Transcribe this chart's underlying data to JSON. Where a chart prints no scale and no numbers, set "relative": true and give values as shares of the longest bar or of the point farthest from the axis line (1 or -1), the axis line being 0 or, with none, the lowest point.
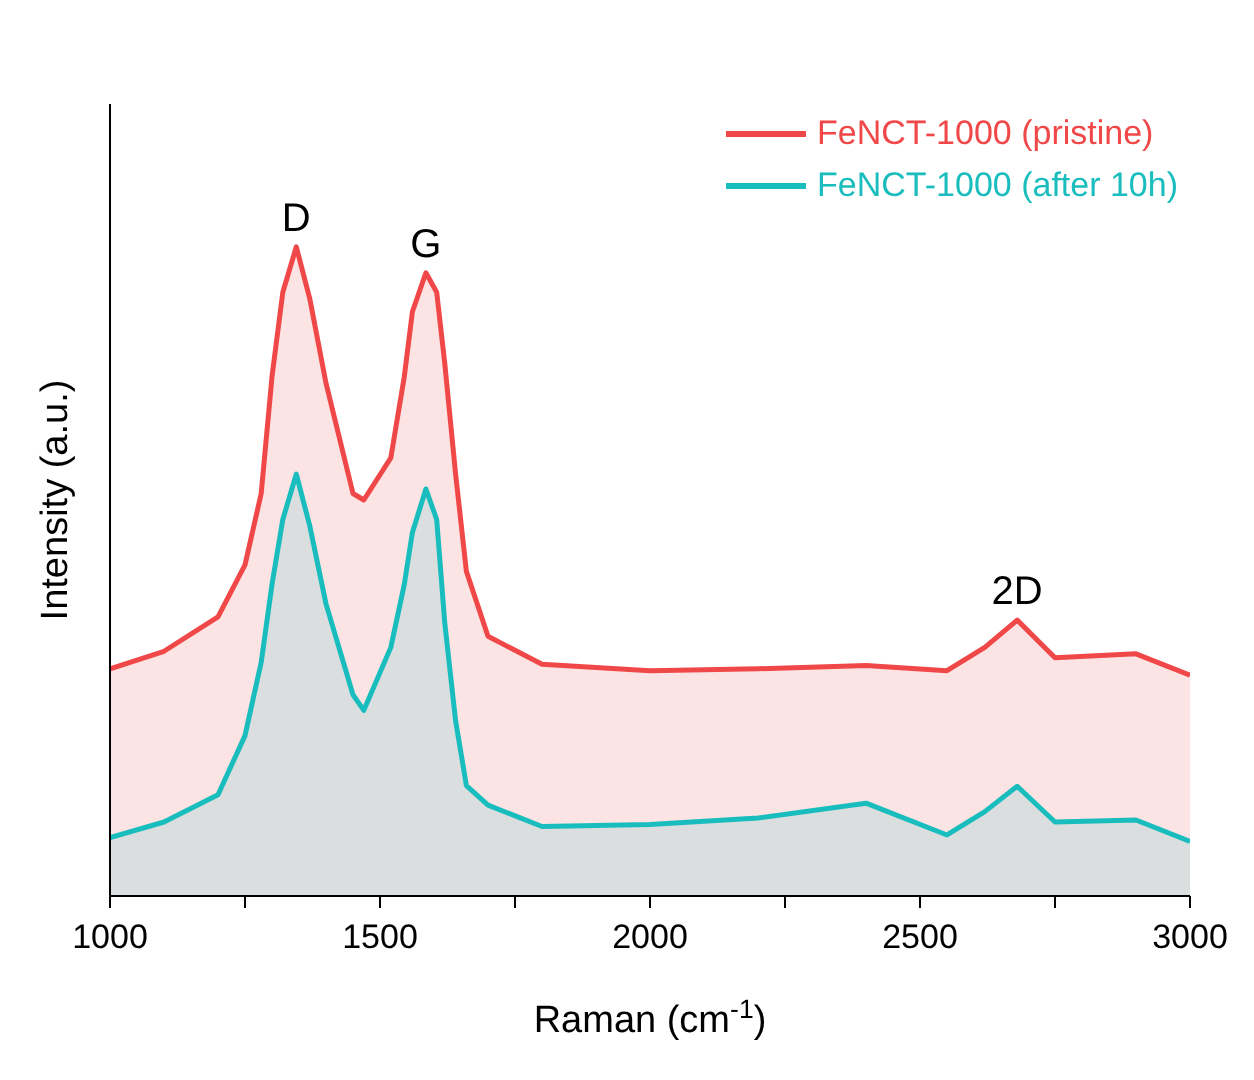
{
  "chart_data": {
    "type": "area",
    "relative": true,
    "xlabel": "Raman (cm$^{-1}$)",
    "ylabel": "Intensity (a.u.)",
    "xlim": [
      1000,
      3000
    ],
    "xticks": [
      1000,
      {
        "value": 1250,
        "label": null
      },
      1500,
      {
        "value": 1750,
        "label": null
      },
      2000,
      {
        "value": 2250,
        "label": null
      },
      2500,
      {
        "value": 2750,
        "label": null
      },
      3000
    ],
    "x": [
      1000,
      1100,
      1200,
      1250,
      1280,
      1300,
      1320,
      1345,
      1370,
      1400,
      1450,
      1470,
      1520,
      1545,
      1560,
      1585,
      1605,
      1620,
      1640,
      1660,
      1700,
      1800,
      2000,
      2200,
      2400,
      2550,
      2620,
      2680,
      2750,
      2900,
      3000
    ],
    "series": [
      {
        "name": "FeNCT-1000 (pristine)",
        "color": "#f04848",
        "values": [
          0.35,
          0.377,
          0.43,
          0.51,
          0.62,
          0.8,
          0.93,
          1.0,
          0.92,
          0.79,
          0.62,
          0.61,
          0.675,
          0.8,
          0.9,
          0.96,
          0.93,
          0.82,
          0.65,
          0.5,
          0.4,
          0.357,
          0.347,
          0.35,
          0.355,
          0.347,
          0.383,
          0.425,
          0.367,
          0.373,
          0.34
        ]
      },
      {
        "name": "FeNCT-1000 (after 10h)",
        "color": "#1abdbd",
        "values": [
          0.09,
          0.114,
          0.156,
          0.247,
          0.36,
          0.48,
          0.58,
          0.65,
          0.57,
          0.45,
          0.31,
          0.286,
          0.383,
          0.48,
          0.56,
          0.627,
          0.58,
          0.42,
          0.27,
          0.17,
          0.14,
          0.107,
          0.11,
          0.12,
          0.143,
          0.094,
          0.13,
          0.169,
          0.114,
          0.117,
          0.084
        ]
      }
    ],
    "annotations": [
      "D",
      "G",
      "2D"
    ],
    "legend": "top right",
    "marker": "none",
    "line_style": "solid"
  }
}
